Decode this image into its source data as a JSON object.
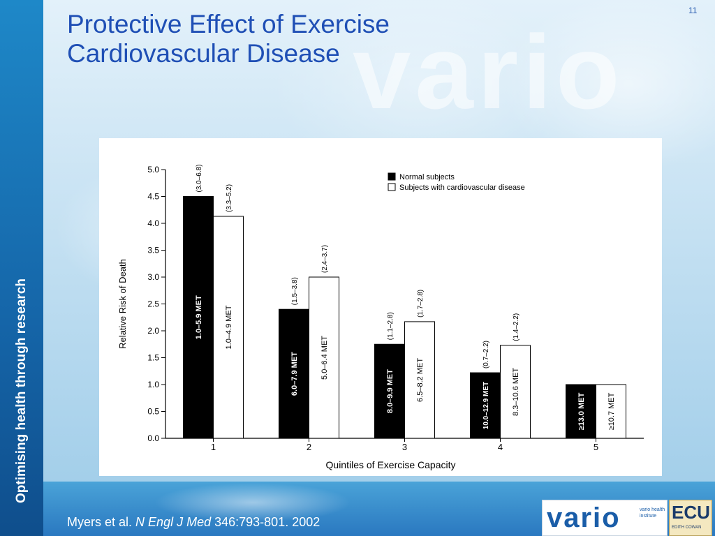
{
  "slide": {
    "title_line1": "Protective Effect of Exercise",
    "title_line2": "Cardiovascular Disease",
    "page_number": "11",
    "sidebar_text": "Optimising health through research",
    "watermark": "vario",
    "citation": {
      "authors": "Myers et al.",
      "journal": "N Engl J Med",
      "ref": "346:793-801. 2002"
    },
    "logo": {
      "word": "vario",
      "subtitle": "vario health institute"
    },
    "ecu_logo": {
      "word": "ECU",
      "subtitle": "EDITH COWAN"
    }
  },
  "chart_data": {
    "type": "bar",
    "xlabel": "Quintiles of Exercise Capacity",
    "ylabel": "Relative Risk of Death",
    "ylim": [
      0,
      5
    ],
    "yticks": [
      "0.0",
      "0.5",
      "1.0",
      "1.5",
      "2.0",
      "2.5",
      "3.0",
      "3.5",
      "4.0",
      "4.5",
      "5.0"
    ],
    "categories": [
      "1",
      "2",
      "3",
      "4",
      "5"
    ],
    "legend_position": "top-right",
    "series": [
      {
        "name": "Normal subjects",
        "color": "#000000",
        "values": [
          4.5,
          2.4,
          1.75,
          1.22,
          1.0
        ],
        "bar_labels": [
          "1.0–5.9 MET",
          "6.0–7.9 MET",
          "8.0–9.9 MET",
          "10.0–12.9 MET",
          "≥13.0 MET"
        ],
        "ci_labels": [
          "(3.0–6.8)",
          "(1.5–3.8)",
          "(1.1–2.8)",
          "(0.7–2.2)",
          ""
        ]
      },
      {
        "name": "Subjects with cardiovascular disease",
        "color": "#ffffff",
        "values": [
          4.13,
          3.0,
          2.17,
          1.73,
          1.0
        ],
        "bar_labels": [
          "1.0–4.9 MET",
          "5.0–6.4 MET",
          "6.5–8.2 MET",
          "8.3–10.6 MET",
          "≥10.7 MET"
        ],
        "ci_labels": [
          "(3.3–5.2)",
          "(2.4–3.7)",
          "(1.7–2.8)",
          "(1.4–2.2)",
          ""
        ]
      }
    ]
  }
}
